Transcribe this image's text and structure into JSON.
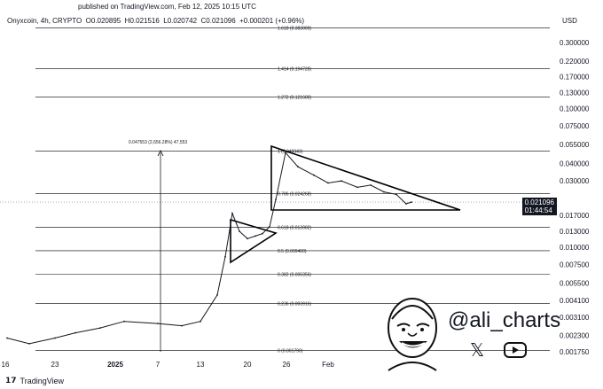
{
  "header": {
    "published": "published on TradingView.com, Feb 12, 2025 10:15 UTC",
    "symbol_line": "Onyxcoin, 4h, CRYPTO  O0.020895  H0.021516  L0.020742  C0.021096  +0.000201 (+0.96%)",
    "currency": "USD"
  },
  "footer": {
    "logo_text": "TradingView"
  },
  "branding": {
    "handle": "@ali_charts",
    "x_icon": "x-logo-icon",
    "youtube_icon": "youtube-logo-icon"
  },
  "price_badge": {
    "price": "0.021096",
    "countdown": "01:44:54"
  },
  "colors": {
    "line": "#131722",
    "grid": "#000000",
    "background": "#ffffff",
    "badge": "#131722"
  },
  "chart_data": {
    "type": "line",
    "title": "Onyxcoin, 4h, CRYPTO",
    "y_scale": "log",
    "y_ticks": [
      "0.300000",
      "0.220000",
      "0.170000",
      "0.130000",
      "0.100000",
      "0.075000",
      "0.055000",
      "0.040000",
      "0.030000",
      "0.021096",
      "0.017000",
      "0.013000",
      "0.010000",
      "0.007500",
      "0.005500",
      "0.004100",
      "0.003100",
      "0.002300",
      "0.001750"
    ],
    "x_ticks": [
      "16",
      "23",
      "2025",
      "7",
      "13",
      "20",
      "26",
      "Feb"
    ],
    "fib_levels": [
      {
        "label": "1.618 (0.383009)",
        "value": 0.383009
      },
      {
        "label": "1.414 (0.194728)",
        "value": 0.194728
      },
      {
        "label": "1.272 (0.121600)",
        "value": 0.1216
      },
      {
        "label": "1 (0.049343)",
        "value": 0.049343
      },
      {
        "label": "0.786 (0.024268)",
        "value": 0.024268
      },
      {
        "label": "0.618 (0.013902)",
        "value": 0.013902
      },
      {
        "label": "0.5 (0.009400)",
        "value": 0.0094
      },
      {
        "label": "0.382 (0.006356)",
        "value": 0.006356
      },
      {
        "label": "0.236 (0.003916)",
        "value": 0.003916
      },
      {
        "label": "0 (0.001790)",
        "value": 0.00179
      }
    ],
    "measure_label": "0.047553 (2,656.28%) 47,553",
    "series": [
      {
        "x": [
          "Dec 16",
          "Dec 19",
          "Dec 23",
          "Dec 27",
          "Dec 31",
          "Jan 3",
          "Jan 7",
          "Jan 10",
          "Jan 13",
          "Jan 15",
          "Jan 16",
          "Jan 17",
          "Jan 18",
          "Jan 19",
          "Jan 20",
          "Jan 21",
          "Jan 22",
          "Jan 23",
          "Jan 24",
          "Jan 26",
          "Jan 28",
          "Jan 30",
          "Feb 1",
          "Feb 3",
          "Feb 5",
          "Feb 7",
          "Feb 9",
          "Feb 11",
          "Feb 12"
        ],
        "y": [
          0.0022,
          0.002,
          0.0022,
          0.0024,
          0.0026,
          0.0029,
          0.0028,
          0.0027,
          0.0029,
          0.0045,
          0.0085,
          0.0175,
          0.013,
          0.0115,
          0.012,
          0.0125,
          0.014,
          0.022,
          0.048,
          0.038,
          0.033,
          0.029,
          0.03,
          0.027,
          0.028,
          0.025,
          0.024,
          0.0205,
          0.0211
        ]
      }
    ],
    "grid": false,
    "legend": "none"
  }
}
